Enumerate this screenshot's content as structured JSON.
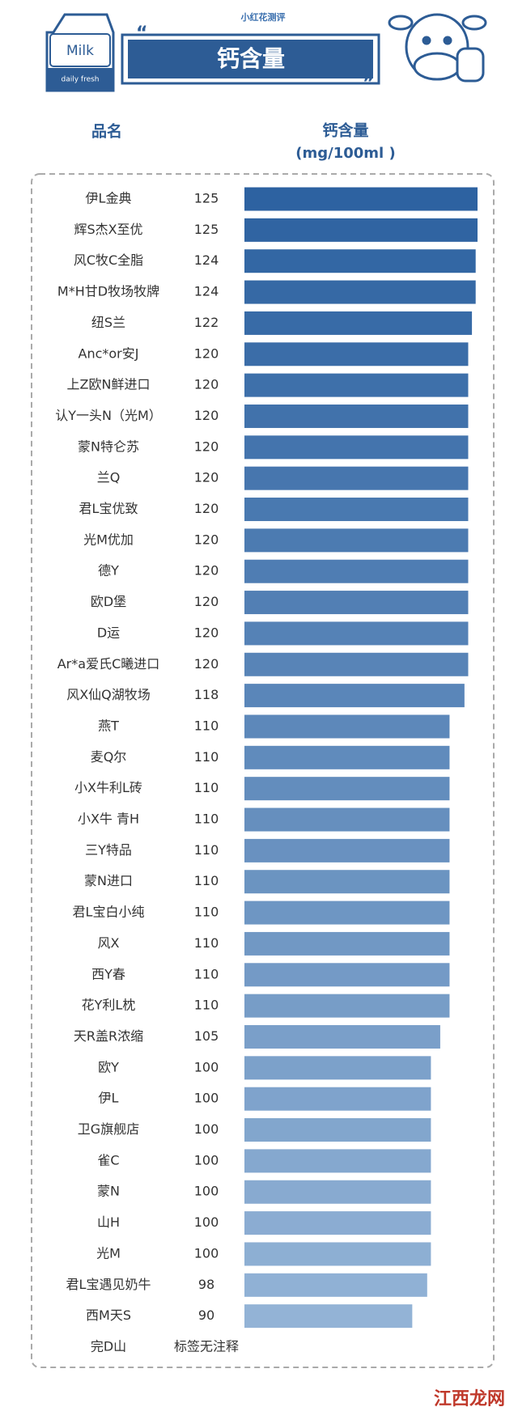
{
  "logo": "小红花测评",
  "carton": {
    "label": "Milk",
    "sublabel": "daily fresh"
  },
  "chart_data": {
    "type": "bar",
    "orientation": "horizontal",
    "title": "钙含量",
    "columns": [
      "品名",
      "钙含量",
      "(mg/100ml )"
    ],
    "categories": [
      "伊L金典",
      "辉S杰X至优",
      "风C牧C全脂",
      "M*H甘D牧场牧牌",
      "纽S兰",
      "Anc*or安J",
      "上Z欧N鲜进口",
      "认Y一头N（光M）",
      "蒙N特仑苏",
      "兰Q",
      "君L宝优致",
      "光M优加",
      "德Y",
      "欧D堡",
      "D运",
      "Ar*a爱氏C曦进口",
      "风X仙Q湖牧场",
      "燕T",
      "麦Q尔",
      "小X牛利L砖",
      "小X牛 青H",
      "三Y特品",
      "蒙N进口",
      "君L宝白小纯",
      "风X",
      "西Y春",
      "花Y利L枕",
      "天R盖R浓缩",
      "欧Y",
      "伊L",
      "卫G旗舰店",
      "雀C",
      "蒙N",
      "山H",
      "光M",
      "君L宝遇见奶牛",
      "西M天S",
      "完D山"
    ],
    "values": [
      125,
      125,
      124,
      124,
      122,
      120,
      120,
      120,
      120,
      120,
      120,
      120,
      120,
      120,
      120,
      120,
      118,
      110,
      110,
      110,
      110,
      110,
      110,
      110,
      110,
      110,
      110,
      105,
      100,
      100,
      100,
      100,
      100,
      100,
      100,
      98,
      90,
      null
    ],
    "value_labels": [
      "125",
      "125",
      "124",
      "124",
      "122",
      "120",
      "120",
      "120",
      "120",
      "120",
      "120",
      "120",
      "120",
      "120",
      "120",
      "120",
      "118",
      "110",
      "110",
      "110",
      "110",
      "110",
      "110",
      "110",
      "110",
      "110",
      "110",
      "105",
      "100",
      "100",
      "100",
      "100",
      "100",
      "100",
      "100",
      "98",
      "90",
      "标签无注释"
    ],
    "colors": [
      "#2d62a1",
      "#93b3d6"
    ]
  },
  "watermark": "江西龙网"
}
